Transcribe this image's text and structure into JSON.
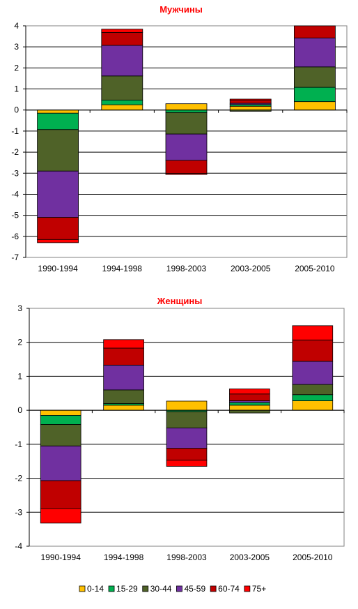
{
  "chart_data": [
    {
      "type": "bar",
      "stacked": true,
      "title": "Мужчины",
      "categories": [
        "1990-1994",
        "1994-1998",
        "1998-2003",
        "2003-2005",
        "2005-2010"
      ],
      "ylim": [
        -7,
        4
      ],
      "yticks": [
        "4",
        "3",
        "2",
        "1",
        "0",
        "-1",
        "-2",
        "-3",
        "-4",
        "-5",
        "-6",
        "-7"
      ],
      "grid": true,
      "series": [
        {
          "name": "0-14",
          "color": "#ffc000",
          "values": [
            -0.15,
            0.25,
            0.3,
            0.18,
            0.4
          ]
        },
        {
          "name": "15-29",
          "color": "#00b050",
          "values": [
            -0.78,
            0.22,
            -0.12,
            0.08,
            0.68
          ]
        },
        {
          "name": "30-44",
          "color": "#4f6228",
          "values": [
            -1.97,
            1.15,
            -1.02,
            -0.06,
            0.97
          ]
        },
        {
          "name": "45-59",
          "color": "#7030a0",
          "values": [
            -2.2,
            1.45,
            -1.25,
            0.06,
            1.37
          ]
        },
        {
          "name": "60-74",
          "color": "#c00000",
          "values": [
            -1.05,
            0.62,
            -0.62,
            0.15,
            0.58
          ]
        },
        {
          "name": "75+",
          "color": "#ff0000",
          "values": [
            -0.15,
            0.15,
            -0.05,
            0.05,
            0.0
          ]
        }
      ]
    },
    {
      "type": "bar",
      "stacked": true,
      "title": "Женщины",
      "categories": [
        "1990-1994",
        "1994-1998",
        "1998-2003",
        "2003-2005",
        "2005-2010"
      ],
      "ylim": [
        -4,
        3
      ],
      "yticks": [
        "3",
        "2",
        "1",
        "0",
        "-1",
        "-2",
        "-3",
        "-4"
      ],
      "grid": true,
      "series": [
        {
          "name": "0-14",
          "color": "#ffc000",
          "values": [
            -0.15,
            0.15,
            0.27,
            0.15,
            0.28
          ]
        },
        {
          "name": "15-29",
          "color": "#00b050",
          "values": [
            -0.27,
            0.05,
            -0.04,
            0.08,
            0.18
          ]
        },
        {
          "name": "30-44",
          "color": "#4f6228",
          "values": [
            -0.63,
            0.4,
            -0.48,
            -0.08,
            0.3
          ]
        },
        {
          "name": "45-59",
          "color": "#7030a0",
          "values": [
            -1.02,
            0.73,
            -0.6,
            0.05,
            0.68
          ]
        },
        {
          "name": "60-74",
          "color": "#c00000",
          "values": [
            -0.82,
            0.5,
            -0.35,
            0.2,
            0.63
          ]
        },
        {
          "name": "75+",
          "color": "#ff0000",
          "values": [
            -0.43,
            0.25,
            -0.18,
            0.15,
            0.42
          ]
        }
      ]
    }
  ],
  "legend": {
    "placement": "bottom",
    "items": [
      {
        "label": "0-14",
        "color": "#ffc000"
      },
      {
        "label": "15-29",
        "color": "#00b050"
      },
      {
        "label": "30-44",
        "color": "#4f6228"
      },
      {
        "label": "45-59",
        "color": "#7030a0"
      },
      {
        "label": "60-74",
        "color": "#c00000"
      },
      {
        "label": "75+",
        "color": "#ff0000"
      }
    ]
  }
}
